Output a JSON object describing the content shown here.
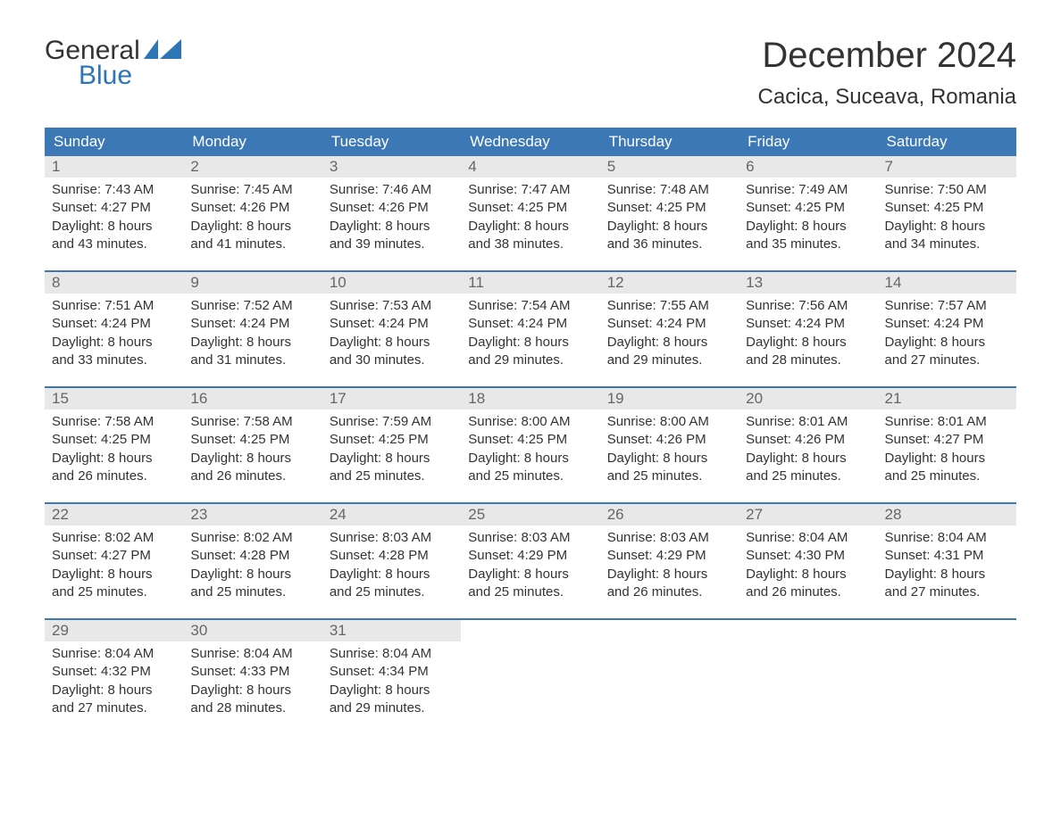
{
  "logo": {
    "text_dark": "General",
    "text_accent": "Blue"
  },
  "colors": {
    "accent": "#3b78b5",
    "header_text": "#ffffff",
    "daynum_bg": "#e8e8e8",
    "daynum_text": "#666666",
    "body_text": "#333333",
    "logo_accent": "#2e75b6",
    "page_bg": "#ffffff"
  },
  "typography": {
    "title_fontsize": 40,
    "location_fontsize": 24,
    "header_fontsize": 17,
    "daynum_fontsize": 17,
    "body_fontsize": 15
  },
  "title": "December 2024",
  "location": "Cacica, Suceava, Romania",
  "day_headers": [
    "Sunday",
    "Monday",
    "Tuesday",
    "Wednesday",
    "Thursday",
    "Friday",
    "Saturday"
  ],
  "weeks": [
    [
      {
        "n": "1",
        "sunrise": "Sunrise: 7:43 AM",
        "sunset": "Sunset: 4:27 PM",
        "d1": "Daylight: 8 hours",
        "d2": "and 43 minutes."
      },
      {
        "n": "2",
        "sunrise": "Sunrise: 7:45 AM",
        "sunset": "Sunset: 4:26 PM",
        "d1": "Daylight: 8 hours",
        "d2": "and 41 minutes."
      },
      {
        "n": "3",
        "sunrise": "Sunrise: 7:46 AM",
        "sunset": "Sunset: 4:26 PM",
        "d1": "Daylight: 8 hours",
        "d2": "and 39 minutes."
      },
      {
        "n": "4",
        "sunrise": "Sunrise: 7:47 AM",
        "sunset": "Sunset: 4:25 PM",
        "d1": "Daylight: 8 hours",
        "d2": "and 38 minutes."
      },
      {
        "n": "5",
        "sunrise": "Sunrise: 7:48 AM",
        "sunset": "Sunset: 4:25 PM",
        "d1": "Daylight: 8 hours",
        "d2": "and 36 minutes."
      },
      {
        "n": "6",
        "sunrise": "Sunrise: 7:49 AM",
        "sunset": "Sunset: 4:25 PM",
        "d1": "Daylight: 8 hours",
        "d2": "and 35 minutes."
      },
      {
        "n": "7",
        "sunrise": "Sunrise: 7:50 AM",
        "sunset": "Sunset: 4:25 PM",
        "d1": "Daylight: 8 hours",
        "d2": "and 34 minutes."
      }
    ],
    [
      {
        "n": "8",
        "sunrise": "Sunrise: 7:51 AM",
        "sunset": "Sunset: 4:24 PM",
        "d1": "Daylight: 8 hours",
        "d2": "and 33 minutes."
      },
      {
        "n": "9",
        "sunrise": "Sunrise: 7:52 AM",
        "sunset": "Sunset: 4:24 PM",
        "d1": "Daylight: 8 hours",
        "d2": "and 31 minutes."
      },
      {
        "n": "10",
        "sunrise": "Sunrise: 7:53 AM",
        "sunset": "Sunset: 4:24 PM",
        "d1": "Daylight: 8 hours",
        "d2": "and 30 minutes."
      },
      {
        "n": "11",
        "sunrise": "Sunrise: 7:54 AM",
        "sunset": "Sunset: 4:24 PM",
        "d1": "Daylight: 8 hours",
        "d2": "and 29 minutes."
      },
      {
        "n": "12",
        "sunrise": "Sunrise: 7:55 AM",
        "sunset": "Sunset: 4:24 PM",
        "d1": "Daylight: 8 hours",
        "d2": "and 29 minutes."
      },
      {
        "n": "13",
        "sunrise": "Sunrise: 7:56 AM",
        "sunset": "Sunset: 4:24 PM",
        "d1": "Daylight: 8 hours",
        "d2": "and 28 minutes."
      },
      {
        "n": "14",
        "sunrise": "Sunrise: 7:57 AM",
        "sunset": "Sunset: 4:24 PM",
        "d1": "Daylight: 8 hours",
        "d2": "and 27 minutes."
      }
    ],
    [
      {
        "n": "15",
        "sunrise": "Sunrise: 7:58 AM",
        "sunset": "Sunset: 4:25 PM",
        "d1": "Daylight: 8 hours",
        "d2": "and 26 minutes."
      },
      {
        "n": "16",
        "sunrise": "Sunrise: 7:58 AM",
        "sunset": "Sunset: 4:25 PM",
        "d1": "Daylight: 8 hours",
        "d2": "and 26 minutes."
      },
      {
        "n": "17",
        "sunrise": "Sunrise: 7:59 AM",
        "sunset": "Sunset: 4:25 PM",
        "d1": "Daylight: 8 hours",
        "d2": "and 25 minutes."
      },
      {
        "n": "18",
        "sunrise": "Sunrise: 8:00 AM",
        "sunset": "Sunset: 4:25 PM",
        "d1": "Daylight: 8 hours",
        "d2": "and 25 minutes."
      },
      {
        "n": "19",
        "sunrise": "Sunrise: 8:00 AM",
        "sunset": "Sunset: 4:26 PM",
        "d1": "Daylight: 8 hours",
        "d2": "and 25 minutes."
      },
      {
        "n": "20",
        "sunrise": "Sunrise: 8:01 AM",
        "sunset": "Sunset: 4:26 PM",
        "d1": "Daylight: 8 hours",
        "d2": "and 25 minutes."
      },
      {
        "n": "21",
        "sunrise": "Sunrise: 8:01 AM",
        "sunset": "Sunset: 4:27 PM",
        "d1": "Daylight: 8 hours",
        "d2": "and 25 minutes."
      }
    ],
    [
      {
        "n": "22",
        "sunrise": "Sunrise: 8:02 AM",
        "sunset": "Sunset: 4:27 PM",
        "d1": "Daylight: 8 hours",
        "d2": "and 25 minutes."
      },
      {
        "n": "23",
        "sunrise": "Sunrise: 8:02 AM",
        "sunset": "Sunset: 4:28 PM",
        "d1": "Daylight: 8 hours",
        "d2": "and 25 minutes."
      },
      {
        "n": "24",
        "sunrise": "Sunrise: 8:03 AM",
        "sunset": "Sunset: 4:28 PM",
        "d1": "Daylight: 8 hours",
        "d2": "and 25 minutes."
      },
      {
        "n": "25",
        "sunrise": "Sunrise: 8:03 AM",
        "sunset": "Sunset: 4:29 PM",
        "d1": "Daylight: 8 hours",
        "d2": "and 25 minutes."
      },
      {
        "n": "26",
        "sunrise": "Sunrise: 8:03 AM",
        "sunset": "Sunset: 4:29 PM",
        "d1": "Daylight: 8 hours",
        "d2": "and 26 minutes."
      },
      {
        "n": "27",
        "sunrise": "Sunrise: 8:04 AM",
        "sunset": "Sunset: 4:30 PM",
        "d1": "Daylight: 8 hours",
        "d2": "and 26 minutes."
      },
      {
        "n": "28",
        "sunrise": "Sunrise: 8:04 AM",
        "sunset": "Sunset: 4:31 PM",
        "d1": "Daylight: 8 hours",
        "d2": "and 27 minutes."
      }
    ],
    [
      {
        "n": "29",
        "sunrise": "Sunrise: 8:04 AM",
        "sunset": "Sunset: 4:32 PM",
        "d1": "Daylight: 8 hours",
        "d2": "and 27 minutes."
      },
      {
        "n": "30",
        "sunrise": "Sunrise: 8:04 AM",
        "sunset": "Sunset: 4:33 PM",
        "d1": "Daylight: 8 hours",
        "d2": "and 28 minutes."
      },
      {
        "n": "31",
        "sunrise": "Sunrise: 8:04 AM",
        "sunset": "Sunset: 4:34 PM",
        "d1": "Daylight: 8 hours",
        "d2": "and 29 minutes."
      },
      {
        "empty": true
      },
      {
        "empty": true
      },
      {
        "empty": true
      },
      {
        "empty": true
      }
    ]
  ]
}
